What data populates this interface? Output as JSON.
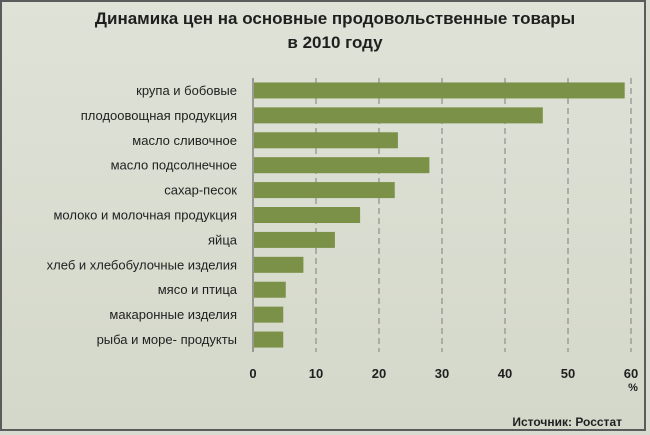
{
  "chart_data": {
    "type": "bar",
    "orientation": "horizontal",
    "title_line1": "Динамика цен на основные продовольственные товары",
    "title_line2": "в 2010 году",
    "categories": [
      "крупа и бобовые",
      "плодоовощная продукция",
      "масло сливочное",
      "масло подсолнечное",
      "сахар-песок",
      "молоко и молочная продукция",
      "яйца",
      "хлеб и хлебобулочные изделия",
      "мясо и птица",
      "макаронные изделия",
      "рыба и море- продукты"
    ],
    "values": [
      59,
      46,
      23,
      28,
      22.5,
      17,
      13,
      8,
      5.2,
      4.8,
      4.8
    ],
    "xlim": [
      0,
      60
    ],
    "xticks": [
      0,
      10,
      20,
      30,
      40,
      50,
      60
    ],
    "xunit": "%",
    "grid": "vertical dashed",
    "bar_color": "#7a9147",
    "source": "Источник: Росстат"
  }
}
